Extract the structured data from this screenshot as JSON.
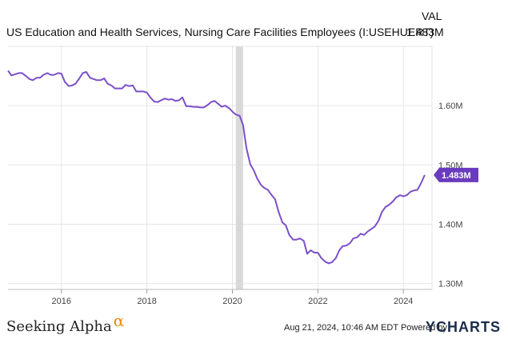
{
  "header": {
    "title": "US Education and Health Services, Nursing Care Facilities Employees (I:USEHUERT)",
    "val_label": "VAL",
    "val_value": "1.483M"
  },
  "footer": {
    "brand_left": "Seeking Alpha",
    "brand_left_mark": "α",
    "timestamp": "Aug 21, 2024, 10:46 AM EDT Powered by",
    "brand_right": "YCHARTS"
  },
  "colors": {
    "line": "#7b4fc9",
    "grid": "#e6e6e6",
    "recession": "#d9d9d9",
    "tag_bg": "#6a3bbf",
    "tag_text": "#ffffff"
  },
  "chart_data": {
    "type": "line",
    "title": "US Education and Health Services, Nursing Care Facilities Employees (I:USEHUERT)",
    "xlabel": "",
    "ylabel": "",
    "x_ticks": [
      "2016",
      "2018",
      "2020",
      "2022",
      "2024"
    ],
    "y_ticks": [
      "1.30M",
      "1.40M",
      "1.50M",
      "1.60M"
    ],
    "ylim": [
      1.29,
      1.7
    ],
    "xlim": [
      2014.75,
      2024.67
    ],
    "grid": true,
    "recession_band": [
      2020.08,
      2020.25
    ],
    "last_value_label": "1.483M",
    "series": [
      {
        "values_unit": "millions",
        "points": [
          [
            2014.75,
            1.659
          ],
          [
            2014.83,
            1.651
          ],
          [
            2014.92,
            1.653
          ],
          [
            2015.0,
            1.655
          ],
          [
            2015.08,
            1.655
          ],
          [
            2015.17,
            1.65
          ],
          [
            2015.25,
            1.645
          ],
          [
            2015.33,
            1.643
          ],
          [
            2015.42,
            1.647
          ],
          [
            2015.5,
            1.647
          ],
          [
            2015.58,
            1.652
          ],
          [
            2015.67,
            1.655
          ],
          [
            2015.75,
            1.652
          ],
          [
            2015.83,
            1.652
          ],
          [
            2015.92,
            1.655
          ],
          [
            2016.0,
            1.654
          ],
          [
            2016.08,
            1.64
          ],
          [
            2016.17,
            1.633
          ],
          [
            2016.25,
            1.634
          ],
          [
            2016.33,
            1.637
          ],
          [
            2016.42,
            1.646
          ],
          [
            2016.5,
            1.655
          ],
          [
            2016.58,
            1.657
          ],
          [
            2016.67,
            1.647
          ],
          [
            2016.75,
            1.645
          ],
          [
            2016.83,
            1.643
          ],
          [
            2016.92,
            1.643
          ],
          [
            2017.0,
            1.646
          ],
          [
            2017.08,
            1.637
          ],
          [
            2017.17,
            1.634
          ],
          [
            2017.25,
            1.629
          ],
          [
            2017.33,
            1.629
          ],
          [
            2017.42,
            1.629
          ],
          [
            2017.5,
            1.635
          ],
          [
            2017.58,
            1.633
          ],
          [
            2017.67,
            1.634
          ],
          [
            2017.75,
            1.624
          ],
          [
            2017.83,
            1.624
          ],
          [
            2017.92,
            1.624
          ],
          [
            2018.0,
            1.622
          ],
          [
            2018.08,
            1.614
          ],
          [
            2018.17,
            1.607
          ],
          [
            2018.25,
            1.606
          ],
          [
            2018.33,
            1.609
          ],
          [
            2018.42,
            1.612
          ],
          [
            2018.5,
            1.61
          ],
          [
            2018.58,
            1.611
          ],
          [
            2018.67,
            1.608
          ],
          [
            2018.75,
            1.609
          ],
          [
            2018.83,
            1.614
          ],
          [
            2018.92,
            1.599
          ],
          [
            2019.0,
            1.599
          ],
          [
            2019.08,
            1.598
          ],
          [
            2019.17,
            1.598
          ],
          [
            2019.25,
            1.597
          ],
          [
            2019.33,
            1.597
          ],
          [
            2019.42,
            1.601
          ],
          [
            2019.5,
            1.606
          ],
          [
            2019.58,
            1.608
          ],
          [
            2019.67,
            1.603
          ],
          [
            2019.75,
            1.598
          ],
          [
            2019.83,
            1.6
          ],
          [
            2019.92,
            1.596
          ],
          [
            2020.0,
            1.59
          ],
          [
            2020.08,
            1.585
          ],
          [
            2020.17,
            1.583
          ],
          [
            2020.25,
            1.567
          ],
          [
            2020.33,
            1.528
          ],
          [
            2020.42,
            1.501
          ],
          [
            2020.5,
            1.491
          ],
          [
            2020.58,
            1.477
          ],
          [
            2020.67,
            1.466
          ],
          [
            2020.75,
            1.461
          ],
          [
            2020.83,
            1.458
          ],
          [
            2020.92,
            1.449
          ],
          [
            2021.0,
            1.442
          ],
          [
            2021.08,
            1.421
          ],
          [
            2021.17,
            1.403
          ],
          [
            2021.25,
            1.398
          ],
          [
            2021.33,
            1.382
          ],
          [
            2021.42,
            1.374
          ],
          [
            2021.5,
            1.374
          ],
          [
            2021.58,
            1.376
          ],
          [
            2021.67,
            1.372
          ],
          [
            2021.75,
            1.35
          ],
          [
            2021.83,
            1.356
          ],
          [
            2021.92,
            1.352
          ],
          [
            2022.0,
            1.352
          ],
          [
            2022.08,
            1.343
          ],
          [
            2022.17,
            1.337
          ],
          [
            2022.25,
            1.334
          ],
          [
            2022.33,
            1.336
          ],
          [
            2022.42,
            1.343
          ],
          [
            2022.5,
            1.356
          ],
          [
            2022.58,
            1.363
          ],
          [
            2022.67,
            1.364
          ],
          [
            2022.75,
            1.368
          ],
          [
            2022.83,
            1.376
          ],
          [
            2022.92,
            1.378
          ],
          [
            2023.0,
            1.384
          ],
          [
            2023.08,
            1.382
          ],
          [
            2023.17,
            1.388
          ],
          [
            2023.25,
            1.392
          ],
          [
            2023.33,
            1.396
          ],
          [
            2023.42,
            1.406
          ],
          [
            2023.5,
            1.421
          ],
          [
            2023.58,
            1.429
          ],
          [
            2023.67,
            1.433
          ],
          [
            2023.75,
            1.438
          ],
          [
            2023.83,
            1.445
          ],
          [
            2023.92,
            1.449
          ],
          [
            2024.0,
            1.447
          ],
          [
            2024.08,
            1.449
          ],
          [
            2024.17,
            1.455
          ],
          [
            2024.25,
            1.457
          ],
          [
            2024.33,
            1.458
          ],
          [
            2024.42,
            1.47
          ],
          [
            2024.5,
            1.483
          ]
        ]
      }
    ]
  }
}
